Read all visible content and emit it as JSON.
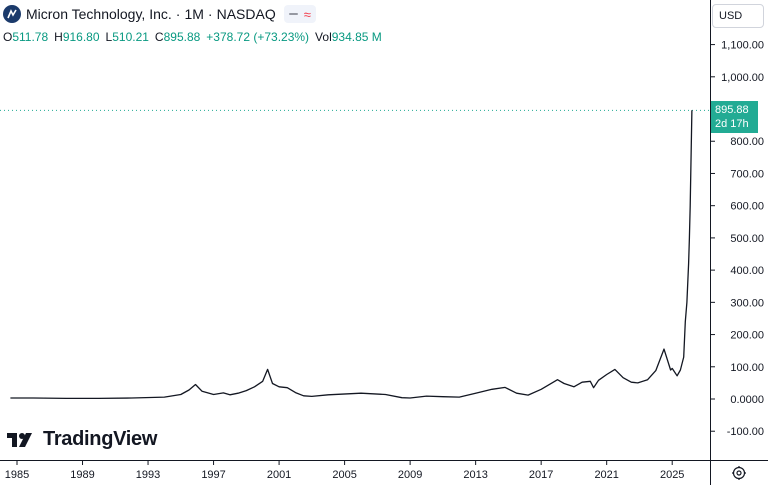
{
  "header": {
    "symbol_name": "Micron Technology, Inc.",
    "interval": "1M",
    "exchange": "NASDAQ",
    "separator": "·",
    "logo_icon": "micron-logo-icon",
    "ohlc": {
      "o_label": "O",
      "o_value": "511.78",
      "h_label": "H",
      "h_value": "916.80",
      "l_label": "L",
      "l_value": "510.21",
      "c_label": "C",
      "c_value": "895.88",
      "change": "+378.72 (+73.23%)",
      "vol_label": "Vol",
      "vol_value": "934.85 M"
    }
  },
  "currency_button": {
    "label": "USD"
  },
  "watermark": {
    "text": "TradingView",
    "icon": "tradingview-logo-icon"
  },
  "price_label": {
    "price": "895.88",
    "countdown": "2d 17h",
    "color": "#22ab94"
  },
  "settings": {
    "icon": "gear-icon"
  },
  "chart_data": {
    "type": "line",
    "title": "Micron Technology, Inc. · 1M · NASDAQ",
    "xlabel": "",
    "ylabel": "",
    "x_ticks": [
      "1985",
      "1989",
      "1993",
      "1997",
      "2001",
      "2005",
      "2009",
      "2013",
      "2017",
      "2021",
      "2025"
    ],
    "y_ticks": [
      "-100.00",
      "0.0000",
      "100.00",
      "200.00",
      "300.00",
      "400.00",
      "500.00",
      "600.00",
      "700.00",
      "800.00",
      "1,000.00",
      "1,100.00"
    ],
    "y_range": [
      -100,
      1100
    ],
    "x_range": [
      1984.6,
      2027.9
    ],
    "grid": false,
    "last_price": 895.88,
    "colors": {
      "line": "#131722",
      "price_line": "#22ab94"
    },
    "series": [
      {
        "x": [
          1984.6,
          1986,
          1988,
          1990,
          1992,
          1994,
          1995,
          1995.5,
          1995.9,
          1996.3,
          1997,
          1997.6,
          1998,
          1998.5,
          1999,
          1999.5,
          2000.0,
          2000.3,
          2000.6,
          2001.0,
          2001.5,
          2002.0,
          2002.5,
          2003.0,
          2004,
          2006,
          2007.5,
          2008.5,
          2009.0,
          2010,
          2011,
          2012.0,
          2013,
          2014,
          2014.8,
          2015.5,
          2016.2,
          2017,
          2018.0,
          2018.4,
          2019.0,
          2019.5,
          2020.0,
          2020.2,
          2020.5,
          2021.0,
          2021.5,
          2022.0,
          2022.5,
          2022.9,
          2023.5,
          2024.0,
          2024.5,
          2024.9,
          2025.0,
          2025.3,
          2025.5,
          2025.7,
          2025.8,
          2025.9,
          2026.0,
          2026.05,
          2026.1,
          2026.2
        ],
        "y": [
          3,
          3,
          2,
          2,
          3,
          6,
          14,
          28,
          45,
          24,
          14,
          19,
          13,
          18,
          26,
          38,
          55,
          92,
          48,
          38,
          35,
          20,
          10,
          8,
          13,
          18,
          14,
          4,
          3,
          9,
          7,
          6,
          18,
          30,
          36,
          18,
          12,
          30,
          60,
          48,
          38,
          52,
          55,
          35,
          58,
          76,
          92,
          66,
          52,
          50,
          60,
          88,
          155,
          90,
          95,
          72,
          90,
          130,
          240,
          300,
          420,
          500,
          600,
          896
        ]
      }
    ]
  }
}
